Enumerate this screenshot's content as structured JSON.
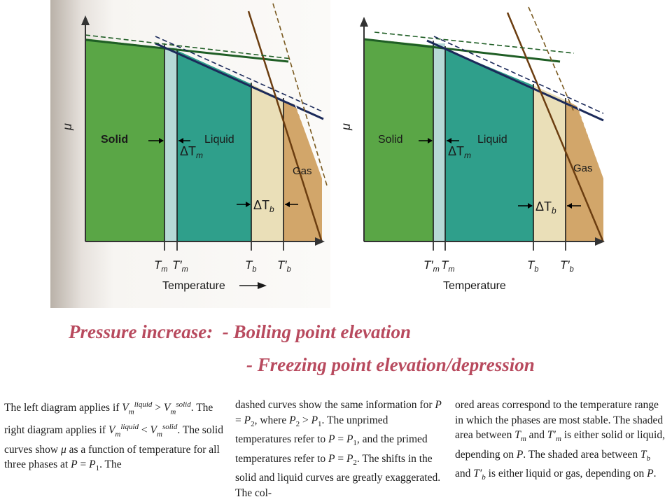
{
  "left_diagram": {
    "axis_y": "μ",
    "phase_solid": "Solid",
    "phase_liquid": "Liquid",
    "phase_gas": "Gas",
    "delta_tm": "ΔT",
    "delta_tm_sub": "m",
    "delta_tb": "ΔT",
    "delta_tb_sub": "b",
    "tick_tm": "T",
    "tick_tm_sub": "m",
    "tick_tmp": "T′",
    "tick_tmp_sub": "m",
    "tick_tb": "T",
    "tick_tb_sub": "b",
    "tick_tbp": "T′",
    "tick_tbp_sub": "b",
    "xlabel": "Temperature"
  },
  "right_diagram": {
    "axis_y": "μ",
    "phase_solid": "Solid",
    "phase_liquid": "Liquid",
    "phase_gas": "Gas",
    "delta_tm": "ΔT",
    "delta_tm_sub": "m",
    "delta_tb": "ΔT",
    "delta_tb_sub": "b",
    "tick_tmp": "T′",
    "tick_tmp_sub": "m",
    "tick_tm": "T",
    "tick_tm_sub": "m",
    "tick_tb": "T",
    "tick_tb_sub": "b",
    "tick_tbp": "T′",
    "tick_tbp_sub": "b",
    "xlabel": "Temperature"
  },
  "colors": {
    "solid": "#5aa646",
    "liquid": "#2f9f8b",
    "gas": "#d2a66a",
    "band_melt": "#b6d9d6",
    "band_boil": "#eadfb8",
    "title_text": "#b84a5e"
  },
  "slide": {
    "line1": "Pressure increase:  - Boiling point elevation",
    "line2": "- Freezing point elevation/depression"
  },
  "caption": {
    "col1": "The left diagram applies if V_m^liquid > V_m^solid. The right diagram applies if V_m^liquid < V_m^solid. The solid curves show μ as a function of temperature for all three phases at P = P1. The",
    "col2": "dashed curves show the same information for P = P2, where P2 > P1. The unprimed temperatures refer to P = P1, and the primed temperatures refer to P = P2. The shifts in the solid and liquid curves are greatly exaggerated. The col-",
    "col3": "ored areas correspond to the temperature range in which the phases are most stable. The shaded area between Tm and T′m is either solid or liquid, depending on P. The shaded area between Tb and T′b is either liquid or gas, depending on P."
  }
}
